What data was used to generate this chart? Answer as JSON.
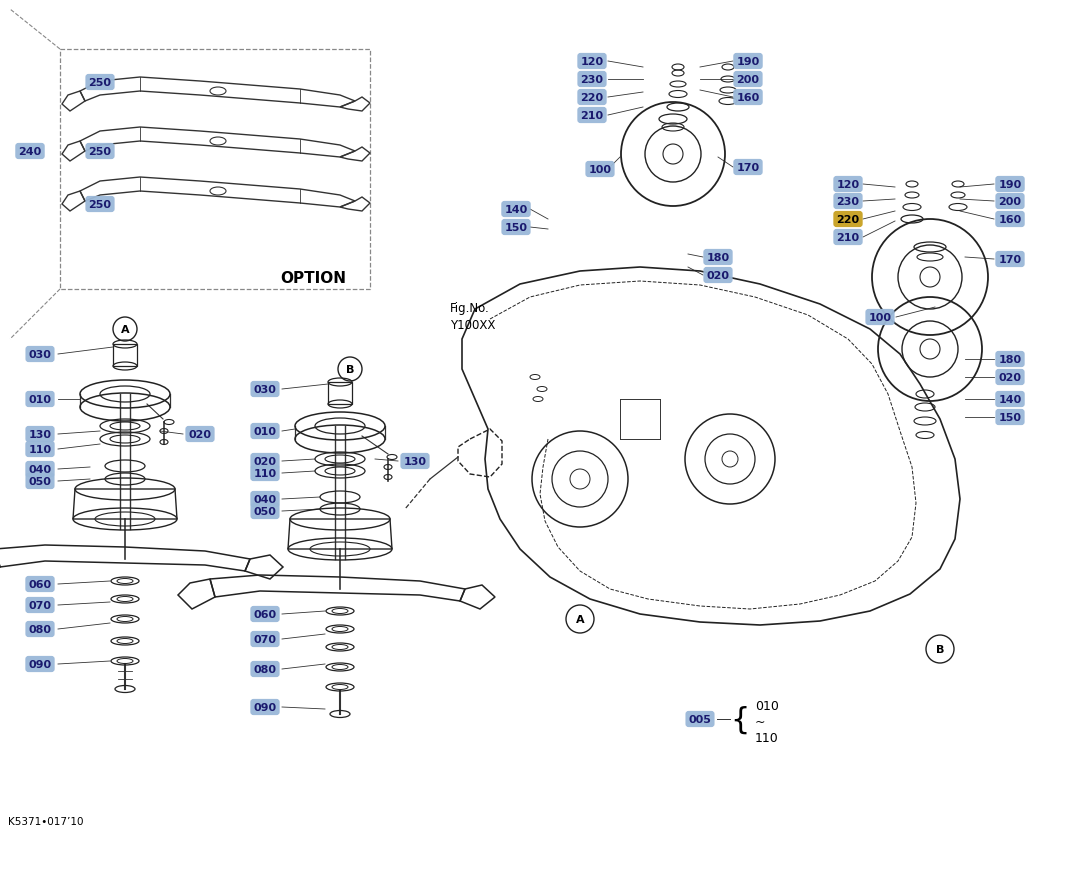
{
  "bg_color": "#ffffff",
  "label_bg_color": "#9ab8d8",
  "label_text_color": "#1a1a6e",
  "highlight_label_bg": "#c8a020",
  "highlight_label_text": "#000000",
  "figsize": [
    10.8,
    8.95
  ],
  "dpi": 100,
  "title_text": "Fig.No.\nY100XX",
  "footnote": "K5371•017’10",
  "option_text": "OPTION",
  "label_fontsize": 8.0,
  "line_color": "#333333",
  "draw_color": "#222222"
}
